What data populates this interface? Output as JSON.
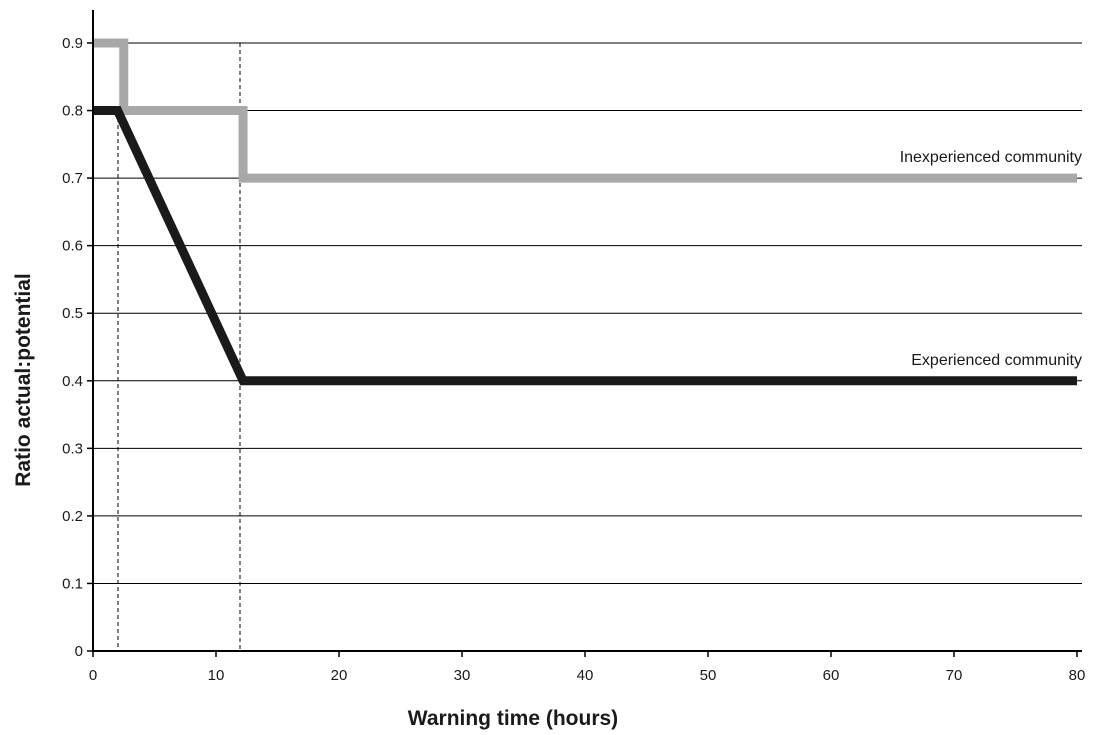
{
  "chart_data": {
    "type": "line",
    "xlabel": "Warning time (hours)",
    "ylabel": "Ratio actual:potential",
    "xlim": [
      0,
      80
    ],
    "ylim": [
      0,
      0.9
    ],
    "xticks": [
      "0",
      "10",
      "20",
      "30",
      "40",
      "50",
      "60",
      "70",
      "80"
    ],
    "yticks": [
      "0",
      "0.1",
      "0.2",
      "0.3",
      "0.4",
      "0.5",
      "0.6",
      "0.7",
      "0.8",
      "0.9"
    ],
    "grid": "horizontal",
    "reference_lines_x": [
      2,
      12
    ],
    "series": [
      {
        "name": "Inexperienced community",
        "color": "#a8a8a8",
        "x": [
          0,
          2.5,
          2.5,
          12.2,
          12.2,
          80
        ],
        "y": [
          0.9,
          0.9,
          0.8,
          0.8,
          0.7,
          0.7
        ]
      },
      {
        "name": "Experienced community",
        "color": "#1a1a1a",
        "x": [
          0,
          2,
          12.2,
          80
        ],
        "y": [
          0.8,
          0.8,
          0.4,
          0.4
        ]
      }
    ]
  }
}
